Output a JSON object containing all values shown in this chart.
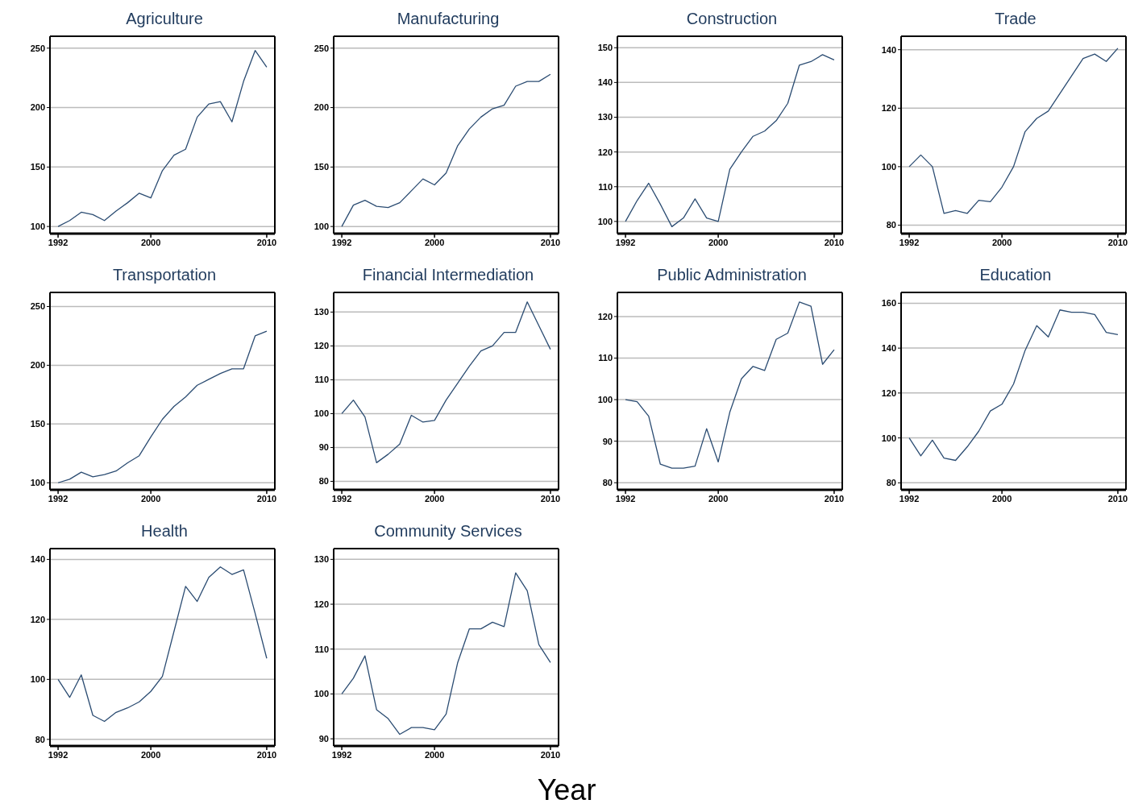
{
  "chart_data": [
    {
      "type": "line",
      "title": "Agriculture",
      "x": [
        1992,
        1993,
        1994,
        1995,
        1996,
        1997,
        1998,
        1999,
        2000,
        2001,
        2002,
        2003,
        2004,
        2005,
        2006,
        2007,
        2008,
        2009,
        2010
      ],
      "series": [
        {
          "color": "#2b4c72",
          "values": [
            100,
            105,
            112,
            110,
            105,
            113,
            120,
            128,
            124,
            147,
            160,
            165,
            192,
            203,
            205,
            188,
            222,
            248,
            234
          ]
        }
      ],
      "xlim": [
        1991.3,
        2010.7
      ],
      "xticks": [
        1992,
        2000,
        2010
      ],
      "ylim": [
        94,
        260
      ],
      "yticks": [
        100,
        150,
        200,
        250
      ],
      "grid": "y",
      "legend": false,
      "marker": "none",
      "line_style": "solid"
    },
    {
      "type": "line",
      "title": "Manufacturing",
      "x": [
        1992,
        1993,
        1994,
        1995,
        1996,
        1997,
        1998,
        1999,
        2000,
        2001,
        2002,
        2003,
        2004,
        2005,
        2006,
        2007,
        2008,
        2009,
        2010
      ],
      "series": [
        {
          "color": "#2b4c72",
          "values": [
            100,
            118,
            122,
            117,
            116,
            120,
            130,
            140,
            135,
            145,
            168,
            182,
            192,
            199,
            202,
            218,
            222,
            222,
            228
          ]
        }
      ],
      "xlim": [
        1991.3,
        2010.7
      ],
      "xticks": [
        1992,
        2000,
        2010
      ],
      "ylim": [
        94,
        260
      ],
      "yticks": [
        100,
        150,
        200,
        250
      ],
      "grid": "y",
      "legend": false,
      "marker": "none",
      "line_style": "solid"
    },
    {
      "type": "line",
      "title": "Construction",
      "x": [
        1992,
        1993,
        1994,
        1995,
        1996,
        1997,
        1998,
        1999,
        2000,
        2001,
        2002,
        2003,
        2004,
        2005,
        2006,
        2007,
        2008,
        2009,
        2010
      ],
      "series": [
        {
          "color": "#2b4c72",
          "values": [
            100,
            106,
            111,
            105,
            98.5,
            101,
            106.5,
            101,
            100,
            115,
            120,
            124.5,
            126,
            129,
            134,
            145,
            146,
            148,
            146.5
          ]
        }
      ],
      "xlim": [
        1991.3,
        2010.7
      ],
      "xticks": [
        1992,
        2000,
        2010
      ],
      "ylim": [
        96.5,
        153.3
      ],
      "yticks": [
        100,
        110,
        120,
        130,
        140,
        150
      ],
      "grid": "y",
      "legend": false,
      "marker": "none",
      "line_style": "solid"
    },
    {
      "type": "line",
      "title": "Trade",
      "x": [
        1992,
        1993,
        1994,
        1995,
        1996,
        1997,
        1998,
        1999,
        2000,
        2001,
        2002,
        2003,
        2004,
        2005,
        2006,
        2007,
        2008,
        2009,
        2010
      ],
      "series": [
        {
          "color": "#2b4c72",
          "values": [
            100,
            104,
            100,
            84,
            85,
            84,
            88.5,
            88,
            93,
            100,
            112,
            116.5,
            119,
            125,
            131,
            137,
            138.5,
            136,
            140.5
          ]
        }
      ],
      "xlim": [
        1991.3,
        2010.7
      ],
      "xticks": [
        1992,
        2000,
        2010
      ],
      "ylim": [
        77.1,
        144.6
      ],
      "yticks": [
        80,
        100,
        120,
        140
      ],
      "grid": "y",
      "legend": false,
      "marker": "none",
      "line_style": "solid"
    },
    {
      "type": "line",
      "title": "Transportation",
      "x": [
        1992,
        1993,
        1994,
        1995,
        1996,
        1997,
        1998,
        1999,
        2000,
        2001,
        2002,
        2003,
        2004,
        2005,
        2006,
        2007,
        2008,
        2009,
        2010
      ],
      "series": [
        {
          "color": "#2b4c72",
          "values": [
            100,
            103,
            109,
            105,
            107,
            110,
            117,
            123,
            139,
            154,
            165,
            173,
            183,
            188,
            193,
            197,
            197,
            225,
            229
          ]
        }
      ],
      "xlim": [
        1991.3,
        2010.7
      ],
      "xticks": [
        1992,
        2000,
        2010
      ],
      "ylim": [
        94,
        262
      ],
      "yticks": [
        100,
        150,
        200,
        250
      ],
      "grid": "y",
      "legend": false,
      "marker": "none",
      "line_style": "solid"
    },
    {
      "type": "line",
      "title": "Financial Intermediation",
      "x": [
        1992,
        1993,
        1994,
        1995,
        1996,
        1997,
        1998,
        1999,
        2000,
        2001,
        2002,
        2003,
        2004,
        2005,
        2006,
        2007,
        2008,
        2009,
        2010
      ],
      "series": [
        {
          "color": "#2b4c72",
          "values": [
            100,
            104,
            99,
            85.5,
            88,
            91,
            99.5,
            97.5,
            98,
            104,
            109,
            114,
            118.5,
            120,
            124,
            124,
            133,
            126,
            119
          ]
        }
      ],
      "xlim": [
        1991.3,
        2010.7
      ],
      "xticks": [
        1992,
        2000,
        2010
      ],
      "ylim": [
        77.5,
        135.8
      ],
      "yticks": [
        80,
        90,
        100,
        110,
        120,
        130
      ],
      "grid": "y",
      "legend": false,
      "marker": "none",
      "line_style": "solid"
    },
    {
      "type": "line",
      "title": "Public Administration",
      "x": [
        1992,
        1993,
        1994,
        1995,
        1996,
        1997,
        1998,
        1999,
        2000,
        2001,
        2002,
        2003,
        2004,
        2005,
        2006,
        2007,
        2008,
        2009,
        2010
      ],
      "series": [
        {
          "color": "#2b4c72",
          "values": [
            100,
            99.5,
            96,
            84.5,
            83.5,
            83.5,
            84,
            93,
            85,
            97,
            105,
            108,
            107,
            114.5,
            116,
            123.5,
            122.5,
            108.5,
            112
          ]
        }
      ],
      "xlim": [
        1991.3,
        2010.7
      ],
      "xticks": [
        1992,
        2000,
        2010
      ],
      "ylim": [
        78.3,
        125.8
      ],
      "yticks": [
        80,
        90,
        100,
        110,
        120
      ],
      "grid": "y",
      "legend": false,
      "marker": "none",
      "line_style": "solid"
    },
    {
      "type": "line",
      "title": "Education",
      "x": [
        1992,
        1993,
        1994,
        1995,
        1996,
        1997,
        1998,
        1999,
        2000,
        2001,
        2002,
        2003,
        2004,
        2005,
        2006,
        2007,
        2008,
        2009,
        2010
      ],
      "series": [
        {
          "color": "#2b4c72",
          "values": [
            100,
            92,
            99,
            91,
            90,
            96,
            103,
            112,
            115,
            124,
            139,
            150,
            145,
            157,
            156,
            156,
            155,
            147,
            146
          ]
        }
      ],
      "xlim": [
        1991.3,
        2010.7
      ],
      "xticks": [
        1992,
        2000,
        2010
      ],
      "ylim": [
        76.9,
        164.8
      ],
      "yticks": [
        80,
        100,
        120,
        140,
        160
      ],
      "grid": "y",
      "legend": false,
      "marker": "none",
      "line_style": "solid"
    },
    {
      "type": "line",
      "title": "Health",
      "x": [
        1992,
        1993,
        1994,
        1995,
        1996,
        1997,
        1998,
        1999,
        2000,
        2001,
        2002,
        2003,
        2004,
        2005,
        2006,
        2007,
        2008,
        2009,
        2010
      ],
      "series": [
        {
          "color": "#2b4c72",
          "values": [
            100,
            94,
            101.5,
            88,
            86,
            89,
            90.5,
            92.5,
            96,
            101,
            116,
            131,
            126,
            134,
            137.5,
            135,
            136.5,
            122,
            107
          ]
        }
      ],
      "xlim": [
        1991.3,
        2010.7
      ],
      "xticks": [
        1992,
        2000,
        2010
      ],
      "ylim": [
        77.8,
        143.6
      ],
      "yticks": [
        80,
        100,
        120,
        140
      ],
      "grid": "y",
      "legend": false,
      "marker": "none",
      "line_style": "solid"
    },
    {
      "type": "line",
      "title": "Community Services",
      "xlabel": "Year",
      "x": [
        1992,
        1993,
        1994,
        1995,
        1996,
        1997,
        1998,
        1999,
        2000,
        2001,
        2002,
        2003,
        2004,
        2005,
        2006,
        2007,
        2008,
        2009,
        2010
      ],
      "series": [
        {
          "color": "#2b4c72",
          "values": [
            100,
            103.5,
            108.5,
            96.5,
            94.5,
            91,
            92.5,
            92.5,
            92,
            95.5,
            107,
            114.5,
            114.5,
            116,
            115,
            127,
            123,
            111,
            107
          ]
        }
      ],
      "xlim": [
        1991.3,
        2010.7
      ],
      "xticks": [
        1992,
        2000,
        2010
      ],
      "ylim": [
        88.4,
        132.4
      ],
      "yticks": [
        90,
        100,
        110,
        120,
        130
      ],
      "grid": "y",
      "legend": false,
      "marker": "none",
      "line_style": "solid"
    }
  ]
}
